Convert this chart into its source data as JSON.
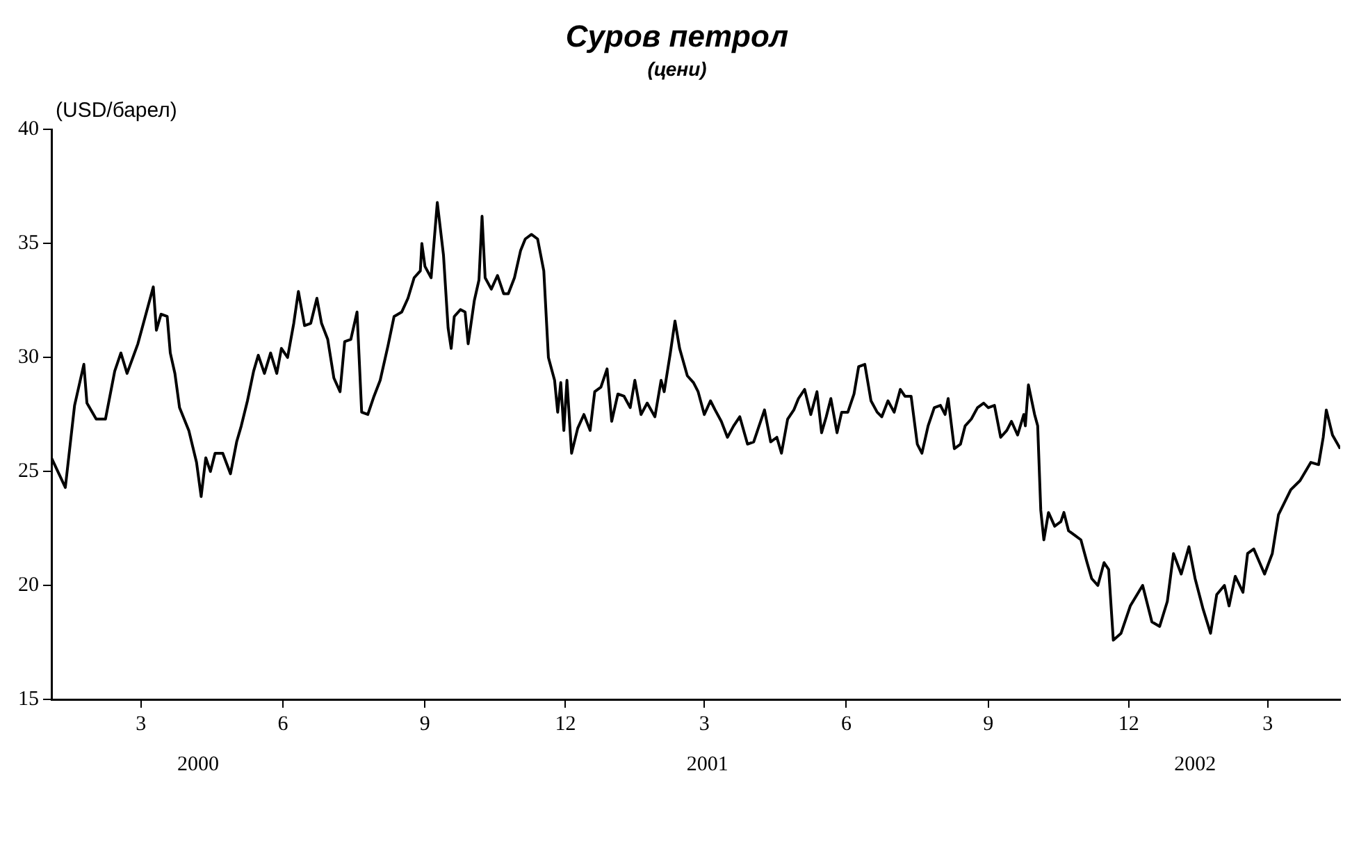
{
  "chart_data": {
    "type": "line",
    "title": "Суров петрол",
    "subtitle": "(цени)",
    "ylabel": "(USD/барел)",
    "xlim": [
      "2000-01-03",
      "2002-04-17"
    ],
    "xticks": [
      {
        "value": "2000-03-01",
        "label": "3"
      },
      {
        "value": "2000-06-01",
        "label": "6"
      },
      {
        "value": "2000-09-01",
        "label": "9"
      },
      {
        "value": "2000-12-01",
        "label": "12"
      },
      {
        "value": "2001-03-01",
        "label": "3"
      },
      {
        "value": "2001-06-01",
        "label": "6"
      },
      {
        "value": "2001-09-01",
        "label": "9"
      },
      {
        "value": "2001-12-01",
        "label": "12"
      },
      {
        "value": "2002-03-01",
        "label": "3"
      }
    ],
    "ylim": [
      15,
      40
    ],
    "yticks": [
      15,
      20,
      25,
      30,
      35,
      40
    ],
    "grid": false,
    "legend": false,
    "x2lim": [
      "2000-01-03",
      "2002-04-17"
    ],
    "x2ticks": [
      {
        "value": "2000-04-07",
        "label": "2000"
      },
      {
        "value": "2001-03-03",
        "label": "2001"
      },
      {
        "value": "2002-01-13",
        "label": "2002"
      }
    ],
    "x": [
      "2000-01-03",
      "2000-01-12",
      "2000-01-18",
      "2000-01-24",
      "2000-01-26",
      "2000-02-01",
      "2000-02-07",
      "2000-02-13",
      "2000-02-17",
      "2000-02-21",
      "2000-02-28",
      "2000-03-03",
      "2000-03-09",
      "2000-03-11",
      "2000-03-14",
      "2000-03-18",
      "2000-03-20",
      "2000-03-23",
      "2000-03-26",
      "2000-04-01",
      "2000-04-06",
      "2000-04-09",
      "2000-04-12",
      "2000-04-15",
      "2000-04-18",
      "2000-04-23",
      "2000-04-28",
      "2000-05-02",
      "2000-05-05",
      "2000-05-09",
      "2000-05-13",
      "2000-05-16",
      "2000-05-20",
      "2000-05-24",
      "2000-05-28",
      "2000-05-31",
      "2000-06-04",
      "2000-06-08",
      "2000-06-11",
      "2000-06-15",
      "2000-06-19",
      "2000-06-23",
      "2000-06-26",
      "2000-06-30",
      "2000-07-04",
      "2000-07-08",
      "2000-07-11",
      "2000-07-15",
      "2000-07-19",
      "2000-07-22",
      "2000-07-26",
      "2000-07-30",
      "2000-08-03",
      "2000-08-08",
      "2000-08-12",
      "2000-08-17",
      "2000-08-21",
      "2000-08-25",
      "2000-08-29",
      "2000-08-30",
      "2000-09-01",
      "2000-09-05",
      "2000-09-09",
      "2000-09-13",
      "2000-09-16",
      "2000-09-18",
      "2000-09-20",
      "2000-09-24",
      "2000-09-27",
      "2000-09-29",
      "2000-10-03",
      "2000-10-06",
      "2000-10-08",
      "2000-10-10",
      "2000-10-14",
      "2000-10-18",
      "2000-10-22",
      "2000-10-25",
      "2000-10-29",
      "2000-11-02",
      "2000-11-05",
      "2000-11-09",
      "2000-11-13",
      "2000-11-17",
      "2000-11-20",
      "2000-11-24",
      "2000-11-26",
      "2000-11-28",
      "2000-11-30",
      "2000-12-02",
      "2000-12-05",
      "2000-12-09",
      "2000-12-13",
      "2000-12-17",
      "2000-12-20",
      "2000-12-24",
      "2000-12-28",
      "2000-12-31",
      "2001-01-04",
      "2001-01-08",
      "2001-01-12",
      "2001-01-15",
      "2001-01-19",
      "2001-01-23",
      "2001-01-28",
      "2001-02-01",
      "2001-02-03",
      "2001-02-07",
      "2001-02-10",
      "2001-02-13",
      "2001-02-18",
      "2001-02-22",
      "2001-02-25",
      "2001-03-01",
      "2001-03-05",
      "2001-03-08",
      "2001-03-12",
      "2001-03-16",
      "2001-03-20",
      "2001-03-24",
      "2001-03-29",
      "2001-04-02",
      "2001-04-05",
      "2001-04-09",
      "2001-04-13",
      "2001-04-17",
      "2001-04-20",
      "2001-04-24",
      "2001-04-28",
      "2001-05-01",
      "2001-05-05",
      "2001-05-09",
      "2001-05-13",
      "2001-05-16",
      "2001-05-19",
      "2001-05-22",
      "2001-05-26",
      "2001-05-29",
      "2001-06-02",
      "2001-06-06",
      "2001-06-09",
      "2001-06-13",
      "2001-06-17",
      "2001-06-21",
      "2001-06-24",
      "2001-06-28",
      "2001-07-02",
      "2001-07-06",
      "2001-07-09",
      "2001-07-13",
      "2001-07-17",
      "2001-07-20",
      "2001-07-24",
      "2001-07-28",
      "2001-08-01",
      "2001-08-04",
      "2001-08-06",
      "2001-08-10",
      "2001-08-14",
      "2001-08-17",
      "2001-08-21",
      "2001-08-25",
      "2001-08-29",
      "2001-09-01",
      "2001-09-05",
      "2001-09-09",
      "2001-09-13",
      "2001-09-16",
      "2001-09-20",
      "2001-09-24",
      "2001-09-25",
      "2001-09-27",
      "2001-10-01",
      "2001-10-03",
      "2001-10-05",
      "2001-10-07",
      "2001-10-10",
      "2001-10-14",
      "2001-10-18",
      "2001-10-20",
      "2001-10-23",
      "2001-10-27",
      "2001-10-31",
      "2001-11-04",
      "2001-11-07",
      "2001-11-11",
      "2001-11-15",
      "2001-11-18",
      "2001-11-21",
      "2001-11-26",
      "2001-12-02",
      "2001-12-10",
      "2001-12-16",
      "2001-12-21",
      "2001-12-26",
      "2001-12-30",
      "2002-01-04",
      "2002-01-09",
      "2002-01-13",
      "2002-01-18",
      "2002-01-23",
      "2002-01-27",
      "2002-02-01",
      "2002-02-04",
      "2002-02-08",
      "2002-02-13",
      "2002-02-16",
      "2002-02-20",
      "2002-02-27",
      "2002-03-04",
      "2002-03-08",
      "2002-03-16",
      "2002-03-22",
      "2002-03-29",
      "2002-04-03",
      "2002-04-06",
      "2002-04-08",
      "2002-04-12",
      "2002-04-17"
    ],
    "series": [
      {
        "color": "#000000",
        "values": [
          25.6,
          24.3,
          27.9,
          29.7,
          28.0,
          27.3,
          27.3,
          29.4,
          30.2,
          29.3,
          30.6,
          31.6,
          33.1,
          31.2,
          31.9,
          31.8,
          30.2,
          29.3,
          27.8,
          26.8,
          25.4,
          23.9,
          25.6,
          25.0,
          25.8,
          25.8,
          24.9,
          26.3,
          27.0,
          28.1,
          29.4,
          30.1,
          29.3,
          30.2,
          29.3,
          30.4,
          30.0,
          31.5,
          32.9,
          31.4,
          31.5,
          32.6,
          31.5,
          30.8,
          29.1,
          28.5,
          30.7,
          30.8,
          32.0,
          27.6,
          27.5,
          28.3,
          29.0,
          30.5,
          31.8,
          32.0,
          32.6,
          33.5,
          33.8,
          35.0,
          34.0,
          33.5,
          36.8,
          34.5,
          31.3,
          30.4,
          31.8,
          32.1,
          32.0,
          30.6,
          32.5,
          33.4,
          36.2,
          33.5,
          33.0,
          33.6,
          32.8,
          32.8,
          33.5,
          34.7,
          35.2,
          35.4,
          35.2,
          33.8,
          30.0,
          29.0,
          27.6,
          28.9,
          26.8,
          29.0,
          25.8,
          26.9,
          27.5,
          26.8,
          28.5,
          28.7,
          29.5,
          27.2,
          28.4,
          28.3,
          27.8,
          29.0,
          27.5,
          28.0,
          27.4,
          29.0,
          28.5,
          30.2,
          31.6,
          30.4,
          29.2,
          28.9,
          28.5,
          27.5,
          28.1,
          27.7,
          27.2,
          26.5,
          27.0,
          27.4,
          26.2,
          26.3,
          26.9,
          27.7,
          26.3,
          26.5,
          25.8,
          27.3,
          27.7,
          28.2,
          28.6,
          27.5,
          28.5,
          26.7,
          27.4,
          28.2,
          26.7,
          27.6,
          27.6,
          28.4,
          29.6,
          29.7,
          28.1,
          27.6,
          27.4,
          28.1,
          27.6,
          28.6,
          28.3,
          28.3,
          26.2,
          25.8,
          27.0,
          27.8,
          27.9,
          27.5,
          28.2,
          26.0,
          26.2,
          27.0,
          27.3,
          27.8,
          28.0,
          27.8,
          27.9,
          26.5,
          26.8,
          27.2,
          26.6,
          27.5,
          27.0,
          28.8,
          27.5,
          27.0,
          23.3,
          22.0,
          23.2,
          22.6,
          22.8,
          23.2,
          22.4,
          22.2,
          22.0,
          21.0,
          20.3,
          20.0,
          21.0,
          20.7,
          17.6,
          17.9,
          19.1,
          20.0,
          18.4,
          18.2,
          19.3,
          21.4,
          20.5,
          21.7,
          20.3,
          19.0,
          17.9,
          19.6,
          20.0,
          19.1,
          20.4,
          19.7,
          21.4,
          21.6,
          20.5,
          21.4,
          23.1,
          24.2,
          24.6,
          25.4,
          25.3,
          26.5,
          27.7,
          26.6,
          26.0
        ]
      }
    ]
  }
}
